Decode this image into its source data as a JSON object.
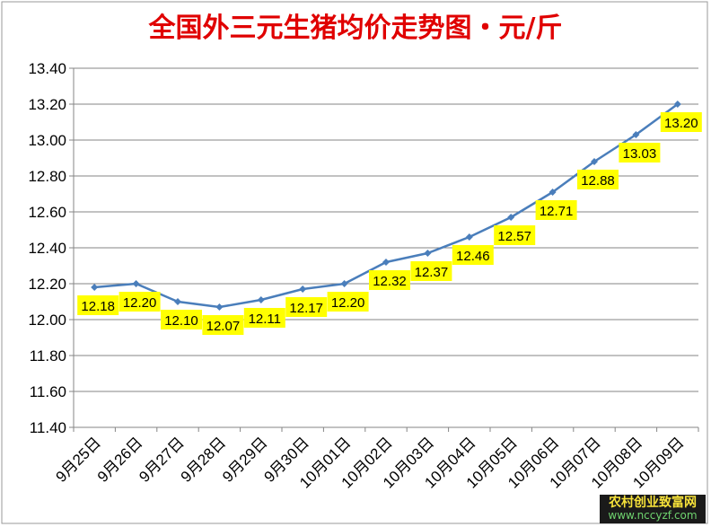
{
  "chart_data": {
    "type": "line",
    "title": "全国外三元生猪均价走势图・元/斤",
    "xlabel": "",
    "ylabel": "",
    "categories": [
      "9月25日",
      "9月26日",
      "9月27日",
      "9月28日",
      "9月29日",
      "9月30日",
      "10月01日",
      "10月02日",
      "10月03日",
      "10月04日",
      "10月05日",
      "10月06日",
      "10月07日",
      "10月08日",
      "10月09日"
    ],
    "series": [
      {
        "values": [
          12.18,
          12.2,
          12.1,
          12.07,
          12.11,
          12.17,
          12.2,
          12.32,
          12.37,
          12.46,
          12.57,
          12.71,
          12.88,
          13.03,
          13.2
        ]
      }
    ],
    "value_labels": [
      "12.18",
      "12.20",
      "12.10",
      "12.07",
      "12.11",
      "12.17",
      "12.20",
      "12.32",
      "12.37",
      "12.46",
      "12.57",
      "12.71",
      "12.88",
      "13.03",
      "13.20"
    ],
    "y_ticks": [
      "11.40",
      "11.60",
      "11.80",
      "12.00",
      "12.20",
      "12.40",
      "12.60",
      "12.80",
      "13.00",
      "13.20",
      "13.40"
    ],
    "ylim": [
      11.4,
      13.4
    ],
    "grid": true,
    "legend": "none",
    "colors": {
      "line": "#4a7ebb",
      "label_bg": "#ffff00",
      "title": "#e00000",
      "grid": "#868686"
    }
  },
  "watermark": {
    "line1": "农村创业致富网",
    "line2": "www.nccyzf.com"
  }
}
